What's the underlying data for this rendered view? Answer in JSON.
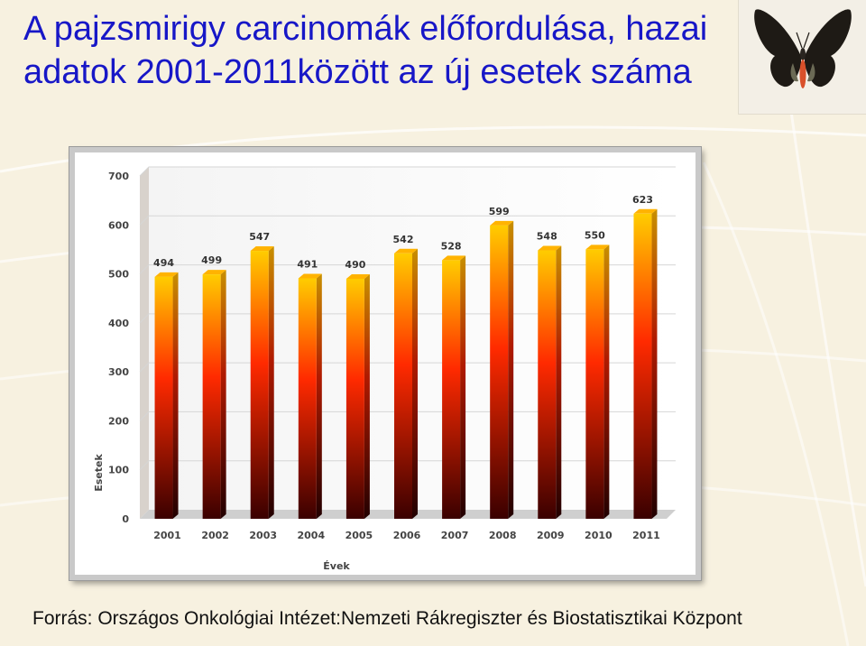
{
  "slide": {
    "title": "A pajzsmirigy carcinomák előfordulása, hazai adatok 2001-2011között az új esetek száma",
    "source": "Forrás: Országos Onkológiai Intézet:Nemzeti Rákregiszter és Biostatisztikai Központ",
    "decoration": "butterfly-icon"
  },
  "colors": {
    "title": "#1717c7",
    "bar_top": "#ffcc00",
    "bar_mid": "#ff2a00",
    "bar_bottom": "#3a0000"
  },
  "chart_data": {
    "type": "bar",
    "title": "",
    "xlabel": "Évek",
    "ylabel": "Esetek",
    "ylim": [
      0,
      700
    ],
    "yticks": [
      0,
      100,
      200,
      300,
      400,
      500,
      600,
      700
    ],
    "grid": true,
    "categories": [
      "2001",
      "2002",
      "2003",
      "2004",
      "2005",
      "2006",
      "2007",
      "2008",
      "2009",
      "2010",
      "2011"
    ],
    "values": [
      494,
      499,
      547,
      491,
      490,
      542,
      528,
      599,
      548,
      550,
      623
    ]
  }
}
